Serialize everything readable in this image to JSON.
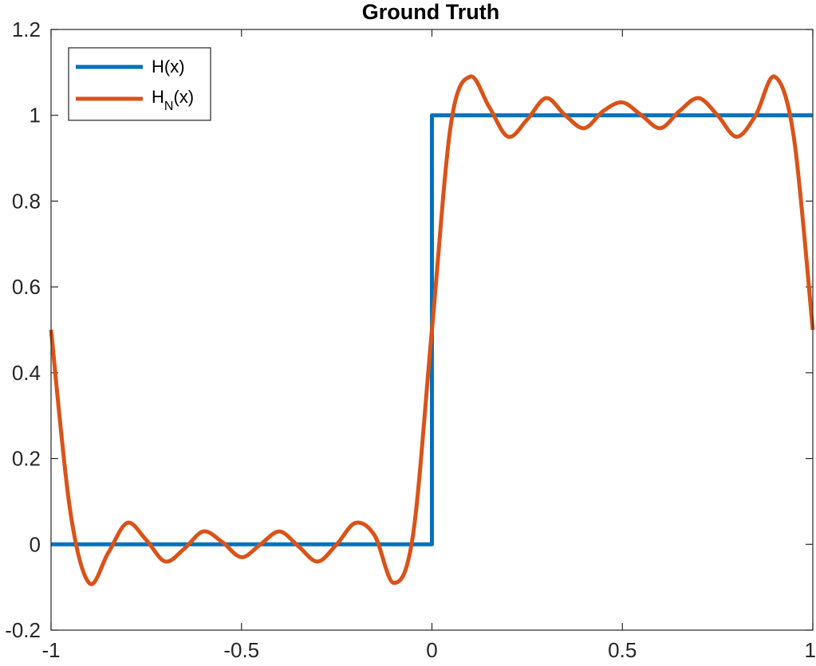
{
  "chart_data": {
    "type": "line",
    "title": "Ground Truth",
    "xlabel": "",
    "ylabel": "",
    "xlim": [
      -1,
      1
    ],
    "ylim": [
      -0.2,
      1.2
    ],
    "xticks": [
      -1,
      -0.5,
      0,
      0.5,
      1
    ],
    "yticks": [
      -0.2,
      0,
      0.2,
      0.4,
      0.6,
      0.8,
      1,
      1.2
    ],
    "xtick_labels": [
      "-1",
      "-0.5",
      "0",
      "0.5",
      "1"
    ],
    "ytick_labels": [
      "-0.2",
      "0",
      "0.2",
      "0.4",
      "0.6",
      "0.8",
      "1",
      "1.2"
    ],
    "legend_location": "top-left",
    "series": [
      {
        "name": "H(x)",
        "legend_main": "H",
        "legend_sub": "",
        "legend_suffix": "(x)",
        "color": "#0072BD",
        "x": [
          -1,
          0,
          0,
          1
        ],
        "y": [
          0,
          0,
          1,
          1
        ]
      },
      {
        "name": "H_N(x)",
        "legend_main": "H",
        "legend_sub": "N",
        "legend_suffix": "(x)",
        "color": "#D95319",
        "x": [
          -1.0,
          -0.95,
          -0.9,
          -0.85,
          -0.8,
          -0.75,
          -0.7,
          -0.65,
          -0.6,
          -0.55,
          -0.5,
          -0.45,
          -0.4,
          -0.35,
          -0.3,
          -0.25,
          -0.2,
          -0.15,
          -0.1,
          -0.05,
          0.0,
          0.05,
          0.1,
          0.15,
          0.2,
          0.25,
          0.3,
          0.35,
          0.4,
          0.45,
          0.5,
          0.55,
          0.6,
          0.65,
          0.7,
          0.75,
          0.8,
          0.85,
          0.9,
          0.95,
          1.0
        ],
        "y": [
          0.5,
          0.08,
          -0.09,
          -0.02,
          0.05,
          0.01,
          -0.04,
          -0.01,
          0.03,
          0.005,
          -0.03,
          0.0,
          0.03,
          -0.005,
          -0.04,
          0.0,
          0.05,
          0.02,
          -0.09,
          0.02,
          0.5,
          0.98,
          1.09,
          1.02,
          0.95,
          0.99,
          1.04,
          1.0,
          0.97,
          1.01,
          1.03,
          1.0,
          0.97,
          1.01,
          1.04,
          1.0,
          0.95,
          1.0,
          1.09,
          0.95,
          0.5
        ]
      }
    ]
  }
}
